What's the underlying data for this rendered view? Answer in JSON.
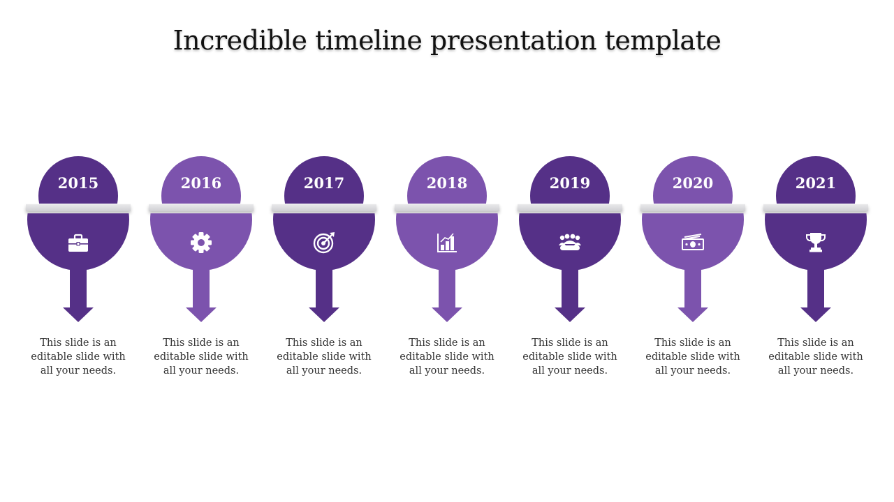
{
  "title": "Incredible timeline presentation template",
  "colors": {
    "dark": "#553087",
    "light": "#7c53ad"
  },
  "steps": [
    {
      "year": "2015",
      "icon": "briefcase-icon",
      "shade": "dark",
      "text": [
        "This slide is an",
        "editable slide with",
        "all your needs."
      ]
    },
    {
      "year": "2016",
      "icon": "gear-icon",
      "shade": "light",
      "text": [
        "This slide is an",
        "editable slide with",
        "all your needs."
      ]
    },
    {
      "year": "2017",
      "icon": "target-icon",
      "shade": "dark",
      "text": [
        "This slide is an",
        "editable slide with",
        "all your needs."
      ]
    },
    {
      "year": "2018",
      "icon": "bar-chart-icon",
      "shade": "light",
      "text": [
        "This slide is an",
        "editable slide with",
        "all your needs."
      ]
    },
    {
      "year": "2019",
      "icon": "team-icon",
      "shade": "dark",
      "text": [
        "This slide is an",
        "editable slide with",
        "all your needs."
      ]
    },
    {
      "year": "2020",
      "icon": "money-icon",
      "shade": "light",
      "text": [
        "This slide is an",
        "editable slide with",
        "all your needs."
      ]
    },
    {
      "year": "2021",
      "icon": "trophy-icon",
      "shade": "dark",
      "text": [
        "This slide is an",
        "editable slide with",
        "all your needs."
      ]
    }
  ]
}
